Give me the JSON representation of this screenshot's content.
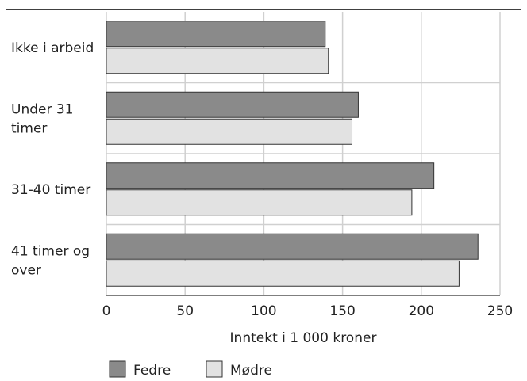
{
  "chart_data": {
    "type": "bar",
    "orientation": "horizontal",
    "categories": [
      [
        "Ikke i arbeid"
      ],
      [
        "Under 31",
        "timer"
      ],
      [
        "31-40 timer"
      ],
      [
        "41 timer og",
        "over"
      ]
    ],
    "series": [
      {
        "name": "Fedre",
        "values": [
          139,
          160,
          208,
          236
        ],
        "color": "#8a8a8a"
      },
      {
        "name": "Mødre",
        "values": [
          141,
          156,
          194,
          224
        ],
        "color": "#e2e2e2"
      }
    ],
    "xlabel": "Inntekt i 1 000 kroner",
    "xlim": [
      0,
      250
    ],
    "xticks": [
      0,
      50,
      100,
      150,
      200,
      250
    ],
    "grid": true,
    "legend": "bottom-left"
  }
}
